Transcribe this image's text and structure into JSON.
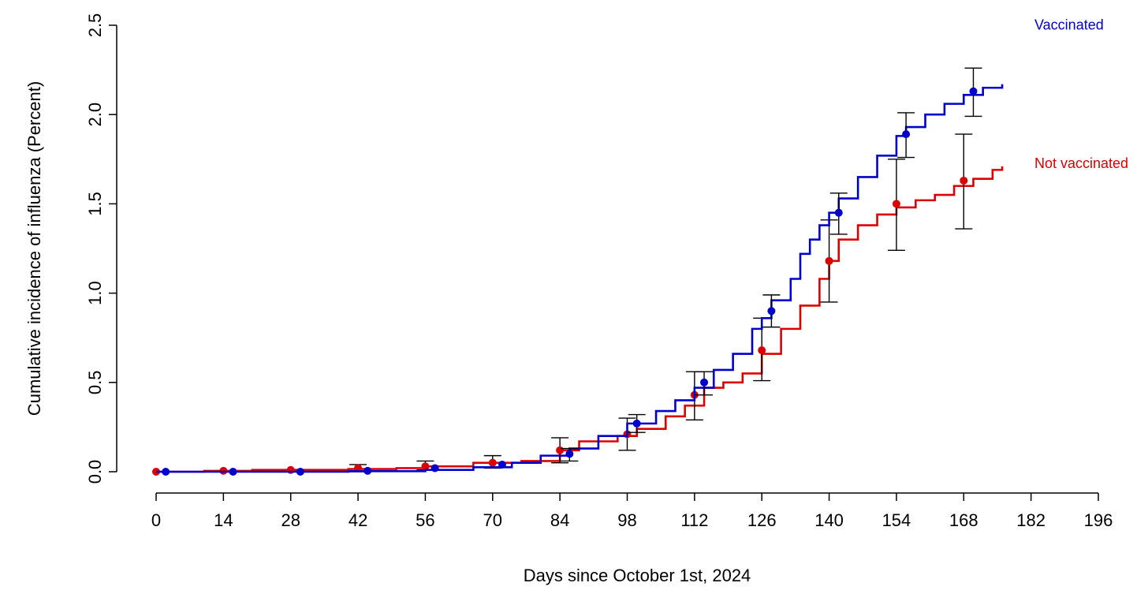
{
  "chart_data": {
    "type": "line",
    "title": "",
    "xlabel": "Days since October 1st, 2024",
    "ylabel": "Cumulative incidence of influenza (Percent)",
    "xlim": [
      0,
      196
    ],
    "ylim": [
      0,
      2.5
    ],
    "x_ticks": [
      "0",
      "14",
      "28",
      "42",
      "56",
      "70",
      "84",
      "98",
      "112",
      "126",
      "140",
      "154",
      "168",
      "182",
      "196"
    ],
    "y_ticks": [
      "0.0",
      "0.5",
      "1.0",
      "1.5",
      "2.0",
      "2.5"
    ],
    "grid": false,
    "legend": "right-side inline labels",
    "series": [
      {
        "name": "Vaccinated",
        "color": "#0000cc",
        "curve": [
          [
            0,
            0.0
          ],
          [
            20,
            0.0
          ],
          [
            40,
            0.003
          ],
          [
            56,
            0.01
          ],
          [
            66,
            0.025
          ],
          [
            74,
            0.05
          ],
          [
            80,
            0.09
          ],
          [
            86,
            0.13
          ],
          [
            92,
            0.2
          ],
          [
            98,
            0.27
          ],
          [
            104,
            0.34
          ],
          [
            108,
            0.4
          ],
          [
            112,
            0.47
          ],
          [
            116,
            0.57
          ],
          [
            120,
            0.66
          ],
          [
            124,
            0.8
          ],
          [
            126,
            0.86
          ],
          [
            128,
            0.96
          ],
          [
            132,
            1.08
          ],
          [
            134,
            1.22
          ],
          [
            136,
            1.3
          ],
          [
            138,
            1.38
          ],
          [
            140,
            1.45
          ],
          [
            142,
            1.53
          ],
          [
            146,
            1.65
          ],
          [
            150,
            1.77
          ],
          [
            154,
            1.88
          ],
          [
            156,
            1.93
          ],
          [
            160,
            2.0
          ],
          [
            164,
            2.06
          ],
          [
            168,
            2.11
          ],
          [
            172,
            2.15
          ],
          [
            176,
            2.17
          ]
        ],
        "estimates": [
          {
            "x": 2,
            "y": 0.0
          },
          {
            "x": 16,
            "y": 0.0
          },
          {
            "x": 30,
            "y": 0.0
          },
          {
            "x": 44,
            "y": 0.005
          },
          {
            "x": 58,
            "y": 0.02
          },
          {
            "x": 72,
            "y": 0.04
          },
          {
            "x": 86,
            "y": 0.1,
            "lower": 0.06,
            "upper": 0.13
          },
          {
            "x": 100,
            "y": 0.27,
            "lower": 0.22,
            "upper": 0.32
          },
          {
            "x": 114,
            "y": 0.5,
            "lower": 0.43,
            "upper": 0.56
          },
          {
            "x": 128,
            "y": 0.9,
            "lower": 0.81,
            "upper": 0.99
          },
          {
            "x": 142,
            "y": 1.45,
            "lower": 1.33,
            "upper": 1.56
          },
          {
            "x": 156,
            "y": 1.89,
            "lower": 1.76,
            "upper": 2.01
          },
          {
            "x": 170,
            "y": 2.13,
            "lower": 1.99,
            "upper": 2.26
          }
        ]
      },
      {
        "name": "Not vaccinated",
        "color": "#dd0000",
        "curve": [
          [
            0,
            0.0
          ],
          [
            10,
            0.005
          ],
          [
            20,
            0.01
          ],
          [
            40,
            0.015
          ],
          [
            50,
            0.02
          ],
          [
            56,
            0.03
          ],
          [
            66,
            0.05
          ],
          [
            76,
            0.06
          ],
          [
            84,
            0.12
          ],
          [
            88,
            0.17
          ],
          [
            96,
            0.2
          ],
          [
            100,
            0.24
          ],
          [
            106,
            0.31
          ],
          [
            110,
            0.37
          ],
          [
            114,
            0.47
          ],
          [
            118,
            0.5
          ],
          [
            122,
            0.55
          ],
          [
            126,
            0.66
          ],
          [
            130,
            0.8
          ],
          [
            134,
            0.93
          ],
          [
            138,
            1.08
          ],
          [
            140,
            1.18
          ],
          [
            142,
            1.3
          ],
          [
            146,
            1.38
          ],
          [
            150,
            1.44
          ],
          [
            154,
            1.48
          ],
          [
            158,
            1.52
          ],
          [
            162,
            1.55
          ],
          [
            166,
            1.6
          ],
          [
            170,
            1.64
          ],
          [
            174,
            1.69
          ],
          [
            176,
            1.71
          ]
        ],
        "estimates": [
          {
            "x": 0,
            "y": 0.0
          },
          {
            "x": 14,
            "y": 0.005
          },
          {
            "x": 28,
            "y": 0.01
          },
          {
            "x": 42,
            "y": 0.02,
            "lower": 0.0,
            "upper": 0.04
          },
          {
            "x": 56,
            "y": 0.03,
            "lower": 0.01,
            "upper": 0.06
          },
          {
            "x": 70,
            "y": 0.05,
            "lower": 0.02,
            "upper": 0.09
          },
          {
            "x": 84,
            "y": 0.12,
            "lower": 0.05,
            "upper": 0.19
          },
          {
            "x": 98,
            "y": 0.21,
            "lower": 0.12,
            "upper": 0.3
          },
          {
            "x": 112,
            "y": 0.43,
            "lower": 0.29,
            "upper": 0.56
          },
          {
            "x": 126,
            "y": 0.68,
            "lower": 0.51,
            "upper": 0.86
          },
          {
            "x": 140,
            "y": 1.18,
            "lower": 0.95,
            "upper": 1.41
          },
          {
            "x": 154,
            "y": 1.5,
            "lower": 1.24,
            "upper": 1.75
          },
          {
            "x": 168,
            "y": 1.63,
            "lower": 1.36,
            "upper": 1.89
          }
        ]
      }
    ]
  }
}
